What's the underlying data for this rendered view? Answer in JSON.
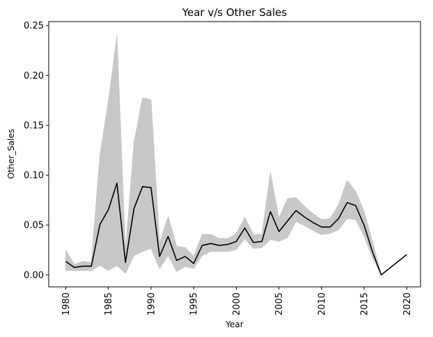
{
  "chart_data": {
    "type": "line",
    "title": "Year v/s Other Sales",
    "xlabel": "Year",
    "ylabel": "Other_Sales",
    "xlim": [
      1978,
      2021.6
    ],
    "ylim": [
      -0.012,
      0.254
    ],
    "x_ticks": [
      "1980",
      "1985",
      "1990",
      "1995",
      "2000",
      "2005",
      "2010",
      "2015",
      "2020"
    ],
    "y_ticks": [
      "0.00",
      "0.05",
      "0.10",
      "0.15",
      "0.20",
      "0.25"
    ],
    "grid": false,
    "legend": "none",
    "line_color": "#000000",
    "band_color": "#c8c8c8",
    "series": [
      {
        "x": [
          1980,
          1981,
          1982,
          1983,
          1984,
          1985,
          1986,
          1987,
          1988,
          1989,
          1990,
          1991,
          1992,
          1993,
          1994,
          1995,
          1996,
          1997,
          1998,
          1999,
          2000,
          2001,
          2002,
          2003,
          2004,
          2005,
          2006,
          2007,
          2008,
          2009,
          2010,
          2011,
          2012,
          2013,
          2014,
          2015,
          2016,
          2017,
          2020
        ],
        "values": [
          0.0135,
          0.0075,
          0.0087,
          0.0087,
          0.0505,
          0.0655,
          0.092,
          0.0125,
          0.0665,
          0.0885,
          0.0875,
          0.0185,
          0.0385,
          0.0145,
          0.0185,
          0.0115,
          0.0295,
          0.0315,
          0.0295,
          0.0305,
          0.0335,
          0.047,
          0.0325,
          0.0335,
          0.0635,
          0.0435,
          0.054,
          0.0645,
          0.058,
          0.0525,
          0.048,
          0.048,
          0.0565,
          0.0725,
          0.0695,
          0.0495,
          0.0225,
          0.0,
          0.0205
        ],
        "ci_lower": [
          0.0045,
          0.0045,
          0.0045,
          0.0045,
          0.0095,
          0.0045,
          0.0095,
          0.0015,
          0.0195,
          0.0235,
          0.0265,
          0.0065,
          0.0195,
          0.0035,
          0.0085,
          0.0065,
          0.0195,
          0.0235,
          0.0235,
          0.0235,
          0.0255,
          0.0365,
          0.0265,
          0.0275,
          0.0355,
          0.0335,
          0.0375,
          0.0535,
          0.0495,
          0.0445,
          0.0405,
          0.0415,
          0.0455,
          0.0565,
          0.0555,
          0.0385,
          0.0165,
          0.0,
          0.0205
        ],
        "ci_upper": [
          0.0245,
          0.0105,
          0.0135,
          0.0125,
          0.1195,
          0.1745,
          0.2395,
          0.0235,
          0.1325,
          0.1775,
          0.1755,
          0.0315,
          0.0585,
          0.0285,
          0.0275,
          0.0185,
          0.0405,
          0.0405,
          0.0365,
          0.0365,
          0.0415,
          0.0575,
          0.0405,
          0.0405,
          0.1025,
          0.0565,
          0.0765,
          0.0775,
          0.0685,
          0.0615,
          0.0555,
          0.0565,
          0.0705,
          0.0945,
          0.0835,
          0.0635,
          0.0325,
          0.0,
          0.0205
        ]
      }
    ]
  }
}
